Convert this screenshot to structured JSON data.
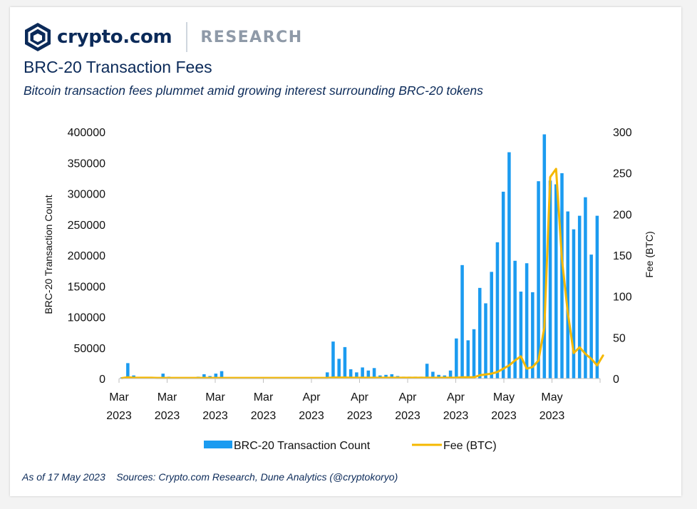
{
  "brand": {
    "name": "crypto.com",
    "section": "RESEARCH",
    "colors": {
      "navy": "#0b2a59",
      "gray": "#8f9aa8"
    }
  },
  "title": "BRC-20 Transaction Fees",
  "subtitle": "Bitcoin transaction fees plummet amid growing interest surrounding BRC-20 tokens",
  "footer": "As of 17 May 2023    Sources: Crypto.com Research, Dune Analytics (@cryptokoryo)",
  "chart_data": {
    "type": "bar",
    "grid": false,
    "legend_position": "bottom",
    "x_tick_labels": [
      [
        "Mar",
        "2023"
      ],
      [
        "Mar",
        "2023"
      ],
      [
        "Mar",
        "2023"
      ],
      [
        "Mar",
        "2023"
      ],
      [
        "Apr",
        "2023"
      ],
      [
        "Apr",
        "2023"
      ],
      [
        "Apr",
        "2023"
      ],
      [
        "Apr",
        "2023"
      ],
      [
        "May",
        "2023"
      ],
      [
        "May",
        "2023"
      ]
    ],
    "y_left": {
      "label": "BRC-20 Transaction Count",
      "range": [
        0,
        400000
      ],
      "ticks": [
        "0",
        "50000",
        "100000",
        "150000",
        "200000",
        "250000",
        "300000",
        "350000",
        "400000"
      ]
    },
    "y_right": {
      "label": "Fee (BTC)",
      "range": [
        0,
        300
      ],
      "ticks": [
        "0",
        "50",
        "100",
        "150",
        "200",
        "250",
        "300"
      ]
    },
    "series": [
      {
        "name": "BRC-20 Transaction Count",
        "type": "bar",
        "axis": "left",
        "color": "#1b9bf0",
        "values": [
          2000,
          25000,
          5000,
          0,
          0,
          0,
          0,
          8000,
          3000,
          0,
          0,
          0,
          0,
          3000,
          7000,
          4000,
          8000,
          12000,
          0,
          0,
          0,
          0,
          0,
          0,
          0,
          0,
          0,
          0,
          0,
          0,
          0,
          0,
          0,
          0,
          0,
          10000,
          60000,
          32000,
          51000,
          15000,
          10000,
          18000,
          13000,
          17000,
          5000,
          6000,
          7000,
          4000,
          3000,
          3000,
          3000,
          3000,
          24000,
          11000,
          6000,
          5000,
          13000,
          65000,
          184000,
          62000,
          80000,
          147000,
          122000,
          173000,
          221000,
          303000,
          367000,
          191000,
          141000,
          187000,
          140000,
          320000,
          396000,
          321000,
          315000,
          333000,
          271000,
          242000,
          264000,
          294000,
          201000,
          264000
        ]
      },
      {
        "name": "Fee (BTC)",
        "type": "line",
        "axis": "right",
        "color": "#f5b800",
        "values": [
          0.5,
          1.5,
          1,
          1,
          1,
          1,
          0.8,
          0.8,
          0.8,
          0.8,
          0.8,
          0.8,
          0.8,
          0.8,
          0.8,
          0.8,
          0.8,
          0.8,
          0.8,
          0.8,
          0.8,
          0.8,
          0.8,
          0.8,
          0.8,
          0.8,
          0.8,
          0.8,
          0.8,
          0.8,
          0.8,
          0.8,
          0.8,
          0.8,
          0.8,
          0.8,
          1.2,
          1.2,
          1.2,
          1,
          1,
          1,
          1,
          1,
          1,
          1,
          1,
          1,
          1,
          1,
          1,
          1,
          1,
          1,
          1,
          1,
          1,
          1,
          1.5,
          1.5,
          1.5,
          4,
          5,
          6,
          8,
          12,
          16,
          22,
          27,
          12,
          14,
          22,
          62,
          245,
          255,
          145,
          80,
          31,
          38,
          30,
          24,
          16,
          28
        ]
      }
    ]
  }
}
